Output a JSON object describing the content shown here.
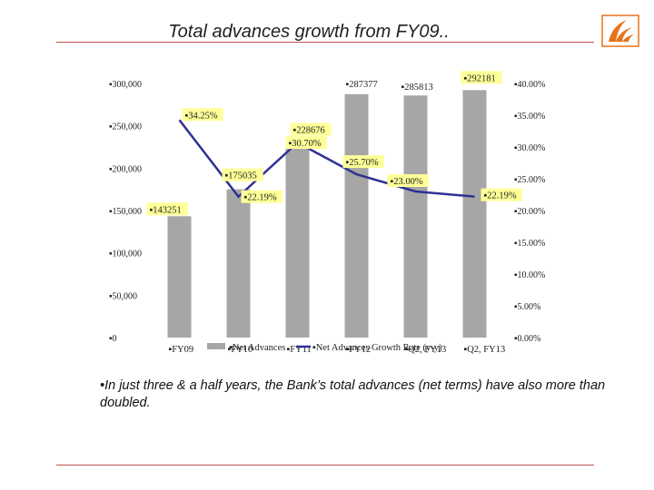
{
  "slide": {
    "title": "Total advances growth from FY09..",
    "caption": "•In just three & a half years, the Bank’s total advances (net terms) have also more than doubled.",
    "logo": "bank-of-baroda-logo-icon",
    "accent_color": "#c0504d",
    "logo_color": "#e8731a"
  },
  "chart_data": {
    "type": "bar",
    "categories": [
      "FY09",
      "FY10",
      "FY11",
      "FY12",
      "Q2, FY13",
      "Q2, FY13"
    ],
    "category_labels": [
      "▪FY09",
      "▪FY10",
      "▪FY11",
      "▪FY12",
      "▪Q2, FY13",
      "▪Q2, FY13"
    ],
    "series": [
      {
        "name": "Net Advances",
        "legend_label": "▪Net Advances",
        "type": "bar",
        "axis": "left",
        "color": "#a6a6a6",
        "values": [
          143251,
          175035,
          228676,
          287377,
          285813,
          292181
        ],
        "labels": [
          "▪143251",
          "▪175035",
          "▪228676",
          "▪287377",
          "▪285813",
          "▪292181"
        ]
      },
      {
        "name": "Net Advances Growth Rate (y-y)",
        "legend_label": "▪Net Advances Growth Rate (y-y)",
        "type": "line",
        "axis": "right",
        "color": "#2e3192",
        "values": [
          34.25,
          22.19,
          30.7,
          25.7,
          23.0,
          22.19
        ],
        "labels": [
          "▪34.25%",
          "▪22.19%",
          "▪30.70%",
          "▪25.70%",
          "▪23.00%",
          "▪22.19%"
        ]
      }
    ],
    "y_left": {
      "ylim": [
        0,
        300000
      ],
      "ticks": [
        0,
        50000,
        100000,
        150000,
        200000,
        250000,
        300000
      ],
      "tick_labels": [
        "▪0",
        "▪50,000",
        "▪100,000",
        "▪150,000",
        "▪200,000",
        "▪250,000",
        "▪300,000"
      ]
    },
    "y_right": {
      "ylim": [
        0,
        40
      ],
      "ticks": [
        0,
        5,
        10,
        15,
        20,
        25,
        30,
        35,
        40
      ],
      "tick_labels": [
        "▪0.00%",
        "▪5.00%",
        "▪10.00%",
        "▪15.00%",
        "▪20.00%",
        "▪25.00%",
        "▪30.00%",
        "▪35.00%",
        "▪40.00%"
      ]
    },
    "label_bg": "#ffff99",
    "grid": false,
    "legend_position": "bottom"
  }
}
